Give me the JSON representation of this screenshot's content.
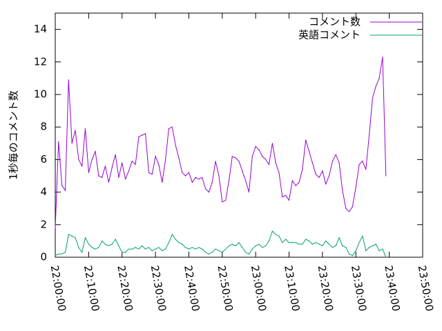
{
  "chart_data": {
    "type": "line",
    "title": "",
    "xlabel": "",
    "ylabel": "1秒毎のコメント数",
    "ylim": [
      0,
      15
    ],
    "xlim": [
      "22:00:00",
      "23:50:00"
    ],
    "xticks": [
      "22:00:00",
      "22:10:00",
      "22:20:00",
      "22:30:00",
      "22:40:00",
      "22:50:00",
      "23:00:00",
      "23:10:00",
      "23:20:00",
      "23:30:00",
      "23:40:00",
      "23:50:00"
    ],
    "yticks": [
      0,
      2,
      4,
      6,
      8,
      10,
      12,
      14
    ],
    "grid": false,
    "legend_position": "top-right",
    "series": [
      {
        "name": "コメント数",
        "color": "#9400d3",
        "points": [
          [
            "22:00:00",
            1.8
          ],
          [
            "22:01:00",
            7.1
          ],
          [
            "22:02:00",
            4.4
          ],
          [
            "22:03:00",
            4.1
          ],
          [
            "22:04:00",
            10.9
          ],
          [
            "22:05:00",
            7.0
          ],
          [
            "22:06:00",
            7.8
          ],
          [
            "22:07:00",
            6.0
          ],
          [
            "22:08:00",
            5.6
          ],
          [
            "22:09:00",
            7.9
          ],
          [
            "22:10:00",
            5.2
          ],
          [
            "22:11:00",
            6.0
          ],
          [
            "22:12:00",
            6.5
          ],
          [
            "22:13:00",
            5.0
          ],
          [
            "22:14:00",
            4.9
          ],
          [
            "22:15:00",
            5.6
          ],
          [
            "22:16:00",
            4.6
          ],
          [
            "22:17:00",
            5.5
          ],
          [
            "22:18:00",
            6.3
          ],
          [
            "22:19:00",
            4.9
          ],
          [
            "22:20:00",
            5.8
          ],
          [
            "22:21:00",
            4.8
          ],
          [
            "22:22:00",
            5.3
          ],
          [
            "22:23:00",
            5.9
          ],
          [
            "22:24:00",
            5.7
          ],
          [
            "22:25:00",
            7.4
          ],
          [
            "22:26:00",
            7.5
          ],
          [
            "22:27:00",
            7.6
          ],
          [
            "22:28:00",
            5.2
          ],
          [
            "22:29:00",
            5.1
          ],
          [
            "22:30:00",
            6.2
          ],
          [
            "22:31:00",
            5.7
          ],
          [
            "22:32:00",
            4.6
          ],
          [
            "22:33:00",
            6.0
          ],
          [
            "22:34:00",
            7.9
          ],
          [
            "22:35:00",
            8.0
          ],
          [
            "22:36:00",
            6.9
          ],
          [
            "22:37:00",
            6.1
          ],
          [
            "22:38:00",
            5.2
          ],
          [
            "22:39:00",
            5.0
          ],
          [
            "22:40:00",
            5.2
          ],
          [
            "22:41:00",
            4.6
          ],
          [
            "22:42:00",
            4.9
          ],
          [
            "22:43:00",
            4.8
          ],
          [
            "22:44:00",
            4.9
          ],
          [
            "22:45:00",
            4.2
          ],
          [
            "22:46:00",
            4.0
          ],
          [
            "22:47:00",
            4.6
          ],
          [
            "22:48:00",
            5.9
          ],
          [
            "22:49:00",
            5.0
          ],
          [
            "22:50:00",
            3.4
          ],
          [
            "22:51:00",
            3.5
          ],
          [
            "22:52:00",
            4.7
          ],
          [
            "22:53:00",
            6.2
          ],
          [
            "22:54:00",
            6.1
          ],
          [
            "22:55:00",
            5.9
          ],
          [
            "22:56:00",
            5.3
          ],
          [
            "22:57:00",
            4.7
          ],
          [
            "22:58:00",
            4.0
          ],
          [
            "22:59:00",
            6.2
          ],
          [
            "23:00:00",
            6.8
          ],
          [
            "23:01:00",
            6.6
          ],
          [
            "23:02:00",
            6.2
          ],
          [
            "23:03:00",
            6.0
          ],
          [
            "23:04:00",
            5.7
          ],
          [
            "23:05:00",
            7.0
          ],
          [
            "23:06:00",
            5.8
          ],
          [
            "23:07:00",
            5.2
          ],
          [
            "23:08:00",
            3.7
          ],
          [
            "23:09:00",
            3.8
          ],
          [
            "23:10:00",
            3.5
          ],
          [
            "23:11:00",
            4.7
          ],
          [
            "23:12:00",
            4.4
          ],
          [
            "23:13:00",
            4.6
          ],
          [
            "23:14:00",
            5.4
          ],
          [
            "23:15:00",
            7.2
          ],
          [
            "23:16:00",
            6.5
          ],
          [
            "23:17:00",
            5.8
          ],
          [
            "23:18:00",
            5.1
          ],
          [
            "23:19:00",
            4.9
          ],
          [
            "23:20:00",
            5.3
          ],
          [
            "23:21:00",
            4.5
          ],
          [
            "23:22:00",
            5.0
          ],
          [
            "23:23:00",
            5.9
          ],
          [
            "23:24:00",
            6.3
          ],
          [
            "23:25:00",
            5.8
          ],
          [
            "23:26:00",
            4.1
          ],
          [
            "23:27:00",
            3.0
          ],
          [
            "23:28:00",
            2.8
          ],
          [
            "23:29:00",
            3.1
          ],
          [
            "23:30:00",
            4.3
          ],
          [
            "23:31:00",
            5.7
          ],
          [
            "23:32:00",
            5.9
          ],
          [
            "23:33:00",
            5.4
          ],
          [
            "23:34:00",
            7.5
          ],
          [
            "23:35:00",
            9.8
          ],
          [
            "23:36:00",
            10.5
          ],
          [
            "23:37:00",
            11.0
          ],
          [
            "23:38:00",
            12.3
          ],
          [
            "23:39:00",
            5.0
          ]
        ]
      },
      {
        "name": "英語コメント",
        "color": "#009e73",
        "points": [
          [
            "22:00:00",
            0.1
          ],
          [
            "22:01:00",
            0.2
          ],
          [
            "22:02:00",
            0.2
          ],
          [
            "22:03:00",
            0.3
          ],
          [
            "22:04:00",
            1.4
          ],
          [
            "22:05:00",
            1.3
          ],
          [
            "22:06:00",
            1.2
          ],
          [
            "22:07:00",
            0.6
          ],
          [
            "22:08:00",
            0.3
          ],
          [
            "22:09:00",
            1.2
          ],
          [
            "22:10:00",
            0.8
          ],
          [
            "22:11:00",
            0.6
          ],
          [
            "22:12:00",
            0.5
          ],
          [
            "22:13:00",
            0.6
          ],
          [
            "22:14:00",
            1.0
          ],
          [
            "22:15:00",
            0.8
          ],
          [
            "22:16:00",
            0.7
          ],
          [
            "22:17:00",
            0.8
          ],
          [
            "22:18:00",
            1.1
          ],
          [
            "22:19:00",
            0.7
          ],
          [
            "22:20:00",
            0.3
          ],
          [
            "22:21:00",
            0.3
          ],
          [
            "22:22:00",
            0.5
          ],
          [
            "22:23:00",
            0.5
          ],
          [
            "22:24:00",
            0.6
          ],
          [
            "22:25:00",
            0.5
          ],
          [
            "22:26:00",
            0.7
          ],
          [
            "22:27:00",
            0.5
          ],
          [
            "22:28:00",
            0.6
          ],
          [
            "22:29:00",
            0.4
          ],
          [
            "22:30:00",
            0.5
          ],
          [
            "22:31:00",
            0.6
          ],
          [
            "22:32:00",
            0.4
          ],
          [
            "22:33:00",
            0.5
          ],
          [
            "22:34:00",
            0.9
          ],
          [
            "22:35:00",
            1.4
          ],
          [
            "22:36:00",
            1.1
          ],
          [
            "22:37:00",
            0.9
          ],
          [
            "22:38:00",
            0.8
          ],
          [
            "22:39:00",
            0.6
          ],
          [
            "22:40:00",
            0.5
          ],
          [
            "22:41:00",
            0.6
          ],
          [
            "22:42:00",
            0.5
          ],
          [
            "22:43:00",
            0.6
          ],
          [
            "22:44:00",
            0.5
          ],
          [
            "22:45:00",
            0.3
          ],
          [
            "22:46:00",
            0.2
          ],
          [
            "22:47:00",
            0.3
          ],
          [
            "22:48:00",
            0.5
          ],
          [
            "22:49:00",
            0.4
          ],
          [
            "22:50:00",
            0.3
          ],
          [
            "22:51:00",
            0.5
          ],
          [
            "22:52:00",
            0.7
          ],
          [
            "22:53:00",
            0.8
          ],
          [
            "22:54:00",
            0.7
          ],
          [
            "22:55:00",
            0.9
          ],
          [
            "22:56:00",
            0.6
          ],
          [
            "22:57:00",
            0.3
          ],
          [
            "22:58:00",
            0.2
          ],
          [
            "22:59:00",
            0.5
          ],
          [
            "23:00:00",
            0.7
          ],
          [
            "23:01:00",
            0.8
          ],
          [
            "23:02:00",
            0.6
          ],
          [
            "23:03:00",
            0.7
          ],
          [
            "23:04:00",
            1.0
          ],
          [
            "23:05:00",
            1.6
          ],
          [
            "23:06:00",
            1.4
          ],
          [
            "23:07:00",
            1.3
          ],
          [
            "23:08:00",
            0.9
          ],
          [
            "23:09:00",
            1.1
          ],
          [
            "23:10:00",
            0.9
          ],
          [
            "23:11:00",
            0.9
          ],
          [
            "23:12:00",
            0.9
          ],
          [
            "23:13:00",
            0.8
          ],
          [
            "23:14:00",
            0.8
          ],
          [
            "23:15:00",
            1.1
          ],
          [
            "23:16:00",
            1.0
          ],
          [
            "23:17:00",
            0.8
          ],
          [
            "23:18:00",
            0.9
          ],
          [
            "23:19:00",
            0.8
          ],
          [
            "23:20:00",
            0.7
          ],
          [
            "23:21:00",
            1.0
          ],
          [
            "23:22:00",
            0.8
          ],
          [
            "23:23:00",
            0.6
          ],
          [
            "23:24:00",
            0.7
          ],
          [
            "23:25:00",
            1.2
          ],
          [
            "23:26:00",
            0.7
          ],
          [
            "23:27:00",
            0.6
          ],
          [
            "23:28:00",
            0.2
          ],
          [
            "23:29:00",
            0.1
          ],
          [
            "23:30:00",
            0.4
          ],
          [
            "23:31:00",
            0.9
          ],
          [
            "23:32:00",
            1.3
          ],
          [
            "23:33:00",
            0.4
          ],
          [
            "23:34:00",
            0.6
          ],
          [
            "23:35:00",
            0.7
          ],
          [
            "23:36:00",
            0.8
          ],
          [
            "23:37:00",
            0.4
          ],
          [
            "23:38:00",
            0.5
          ],
          [
            "23:39:00",
            0.0
          ]
        ]
      }
    ]
  }
}
